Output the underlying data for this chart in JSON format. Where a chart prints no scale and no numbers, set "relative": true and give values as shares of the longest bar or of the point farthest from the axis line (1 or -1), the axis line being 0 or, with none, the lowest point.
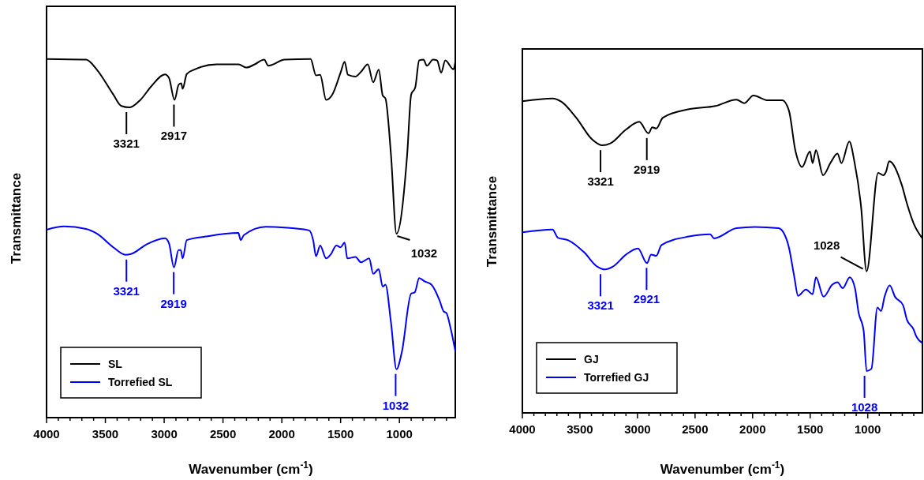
{
  "chart_data": [
    {
      "type": "line",
      "relative": true,
      "xlabel": "Wavenumber (cm$^{-1}$)",
      "ylabel": "Transmittance",
      "xlim": [
        4000,
        525
      ],
      "xticks": [
        4000,
        {
          "value": 3900,
          "label": null
        },
        {
          "value": 3800,
          "label": null
        },
        {
          "value": 3700,
          "label": null
        },
        {
          "value": 3600,
          "label": null
        },
        3500,
        {
          "value": 3400,
          "label": null
        },
        {
          "value": 3300,
          "label": null
        },
        {
          "value": 3200,
          "label": null
        },
        {
          "value": 3100,
          "label": null
        },
        3000,
        {
          "value": 2900,
          "label": null
        },
        {
          "value": 2800,
          "label": null
        },
        {
          "value": 2700,
          "label": null
        },
        {
          "value": 2600,
          "label": null
        },
        2500,
        {
          "value": 2400,
          "label": null
        },
        {
          "value": 2300,
          "label": null
        },
        {
          "value": 2200,
          "label": null
        },
        {
          "value": 2100,
          "label": null
        },
        2000,
        {
          "value": 1900,
          "label": null
        },
        {
          "value": 1800,
          "label": null
        },
        {
          "value": 1700,
          "label": null
        },
        {
          "value": 1600,
          "label": null
        },
        1500,
        {
          "value": 1400,
          "label": null
        },
        {
          "value": 1300,
          "label": null
        },
        {
          "value": 1200,
          "label": null
        },
        {
          "value": 1100,
          "label": null
        },
        1000,
        {
          "value": 900,
          "label": null
        },
        {
          "value": 800,
          "label": null
        },
        {
          "value": 700,
          "label": null
        },
        {
          "value": 600,
          "label": null
        }
      ],
      "legend": "bottom left",
      "series": [
        {
          "name": "SL",
          "color": "#000000",
          "x": [
            4000,
            3664,
            3572,
            3433,
            3364,
            3294,
            3202,
            3109,
            2993,
            2959,
            2912,
            2877,
            2855,
            2843,
            2808,
            2739,
            2554,
            2369,
            2299,
            2230,
            2150,
            2115,
            1976,
            1755,
            1709,
            1674,
            1623,
            1570,
            1500,
            1466,
            1438,
            1373,
            1327,
            1269,
            1223,
            1176,
            1142,
            1119,
            1072,
            1025,
            934,
            900,
            866,
            832,
            795,
            767,
            714,
            680,
            645,
            610,
            540,
            525
          ],
          "values": [
            1.0,
            0.998,
            0.97,
            0.901,
            0.869,
            0.865,
            0.886,
            0.924,
            0.957,
            0.947,
            0.886,
            0.928,
            0.932,
            0.917,
            0.958,
            0.971,
            0.985,
            0.985,
            0.976,
            0.985,
            0.998,
            0.981,
            0.998,
            1.0,
            0.954,
            0.956,
            0.886,
            0.901,
            0.962,
            0.992,
            0.956,
            0.951,
            0.964,
            0.985,
            0.935,
            0.97,
            0.898,
            0.89,
            0.734,
            0.513,
            0.734,
            0.901,
            0.92,
            0.996,
            0.998,
            0.981,
            0.998,
            0.996,
            0.962,
            0.996,
            0.971,
            0.992
          ]
        },
        {
          "name": "Torrefied SL",
          "color": "#0000ff",
          "x": [
            4000,
            3850,
            3664,
            3572,
            3433,
            3329,
            3283,
            3155,
            2993,
            2959,
            2917,
            2878,
            2859,
            2843,
            2808,
            2646,
            2369,
            2350,
            2322,
            2137,
            1976,
            1767,
            1733,
            1709,
            1674,
            1623,
            1582,
            1536,
            1500,
            1466,
            1443,
            1373,
            1327,
            1257,
            1223,
            1176,
            1142,
            1119,
            1072,
            1025,
            980,
            900,
            870,
            832,
            786,
            728,
            659,
            624,
            601,
            566,
            525
          ],
          "values": [
            0.524,
            0.533,
            0.526,
            0.513,
            0.475,
            0.454,
            0.456,
            0.482,
            0.5,
            0.486,
            0.419,
            0.467,
            0.467,
            0.444,
            0.495,
            0.505,
            0.515,
            0.495,
            0.509,
            0.532,
            0.53,
            0.522,
            0.494,
            0.45,
            0.48,
            0.444,
            0.456,
            0.48,
            0.475,
            0.488,
            0.444,
            0.448,
            0.433,
            0.444,
            0.401,
            0.414,
            0.365,
            0.371,
            0.266,
            0.135,
            0.182,
            0.346,
            0.349,
            0.389,
            0.38,
            0.371,
            0.327,
            0.296,
            0.292,
            0.251,
            0.186
          ]
        }
      ],
      "annotations": [
        {
          "text": "3321",
          "x": 3321,
          "y": 0.865
        },
        {
          "text": "2917",
          "x": 2917,
          "y": 0.886
        },
        {
          "text": "1032",
          "x": 1032,
          "y": 0.513
        },
        {
          "text": "3321",
          "x": 3321,
          "y": 0.454
        },
        {
          "text": "2919",
          "x": 2919,
          "y": 0.419
        },
        {
          "text": "1032",
          "x": 1032,
          "y": 0.135
        }
      ]
    },
    {
      "type": "line",
      "relative": true,
      "xlabel": "Wavenumber (cm$^{-1}$)",
      "ylabel": "Transmittance",
      "xlim": [
        4000,
        525
      ],
      "xticks": [
        4000,
        {
          "value": 3900,
          "label": null
        },
        {
          "value": 3800,
          "label": null
        },
        {
          "value": 3700,
          "label": null
        },
        {
          "value": 3600,
          "label": null
        },
        3500,
        {
          "value": 3400,
          "label": null
        },
        {
          "value": 3300,
          "label": null
        },
        {
          "value": 3200,
          "label": null
        },
        {
          "value": 3100,
          "label": null
        },
        3000,
        {
          "value": 2900,
          "label": null
        },
        {
          "value": 2800,
          "label": null
        },
        {
          "value": 2700,
          "label": null
        },
        {
          "value": 2600,
          "label": null
        },
        2500,
        {
          "value": 2400,
          "label": null
        },
        {
          "value": 2300,
          "label": null
        },
        {
          "value": 2200,
          "label": null
        },
        {
          "value": 2100,
          "label": null
        },
        2000,
        {
          "value": 1900,
          "label": null
        },
        {
          "value": 1800,
          "label": null
        },
        {
          "value": 1700,
          "label": null
        },
        {
          "value": 1600,
          "label": null
        },
        1500,
        {
          "value": 1400,
          "label": null
        },
        {
          "value": 1300,
          "label": null
        },
        {
          "value": 1200,
          "label": null
        },
        {
          "value": 1100,
          "label": null
        },
        1000,
        {
          "value": 900,
          "label": null
        },
        {
          "value": 800,
          "label": null
        },
        {
          "value": 700,
          "label": null
        },
        {
          "value": 600,
          "label": null
        }
      ],
      "legend": "bottom left",
      "series": [
        {
          "name": "GJ",
          "color": "#000000",
          "x": [
            4000,
            3738,
            3658,
            3532,
            3395,
            3304,
            3236,
            3099,
            2985,
            2905,
            2871,
            2837,
            2780,
            2552,
            2323,
            2141,
            2073,
            1993,
            1867,
            1742,
            1685,
            1627,
            1570,
            1502,
            1479,
            1450,
            1388,
            1320,
            1263,
            1229,
            1160,
            1115,
            1058,
            1010,
            909,
            864,
            841,
            814,
            704,
            658,
            601,
            525
          ],
          "values": [
            0.982,
            0.991,
            0.98,
            0.93,
            0.862,
            0.843,
            0.849,
            0.893,
            0.917,
            0.881,
            0.9,
            0.896,
            0.93,
            0.957,
            0.967,
            0.987,
            0.976,
            1.0,
            0.985,
            0.985,
            0.953,
            0.824,
            0.775,
            0.824,
            0.787,
            0.828,
            0.749,
            0.79,
            0.817,
            0.787,
            0.855,
            0.79,
            0.65,
            0.446,
            0.756,
            0.749,
            0.76,
            0.793,
            0.718,
            0.658,
            0.597,
            0.55
          ]
        },
        {
          "name": "Torrefied GJ",
          "color": "#0000ff",
          "x": [
            4000,
            3738,
            3692,
            3601,
            3464,
            3350,
            3281,
            3213,
            3099,
            2996,
            2917,
            2882,
            2837,
            2791,
            2552,
            2369,
            2335,
            2141,
            1981,
            1776,
            1730,
            1685,
            1639,
            1605,
            1537,
            1479,
            1450,
            1384,
            1308,
            1263,
            1217,
            1156,
            1111,
            1080,
            1035,
            1010,
            968,
            916,
            884,
            854,
            809,
            763,
            694,
            660,
            603,
            578,
            525
          ],
          "values": [
            0.569,
            0.578,
            0.552,
            0.544,
            0.506,
            0.461,
            0.452,
            0.461,
            0.499,
            0.518,
            0.472,
            0.499,
            0.495,
            0.529,
            0.556,
            0.563,
            0.55,
            0.582,
            0.586,
            0.582,
            0.567,
            0.522,
            0.431,
            0.369,
            0.389,
            0.374,
            0.427,
            0.366,
            0.404,
            0.412,
            0.393,
            0.427,
            0.393,
            0.317,
            0.257,
            0.132,
            0.139,
            0.332,
            0.321,
            0.366,
            0.402,
            0.366,
            0.34,
            0.294,
            0.264,
            0.241,
            0.22
          ]
        }
      ],
      "annotations": [
        {
          "text": "3321",
          "x": 3321,
          "y": 0.843
        },
        {
          "text": "2919",
          "x": 2919,
          "y": 0.881
        },
        {
          "text": "1028",
          "x": 1028,
          "y": 0.446
        },
        {
          "text": "3321",
          "x": 3321,
          "y": 0.452
        },
        {
          "text": "2921",
          "x": 2921,
          "y": 0.472
        },
        {
          "text": "1028",
          "x": 1028,
          "y": 0.132
        }
      ]
    }
  ]
}
